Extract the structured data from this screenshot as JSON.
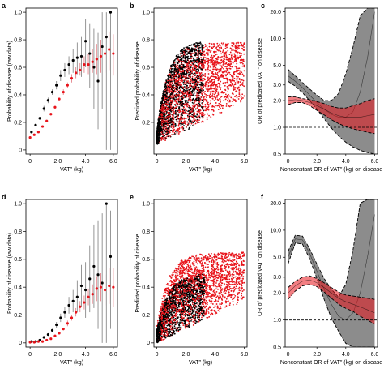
{
  "colors": {
    "black": "#000000",
    "red": "#e8141b",
    "grey_band": "#8c8c8c",
    "red_band": "#e8141b",
    "errbar": "#8a8a8a"
  },
  "chart_data": [
    {
      "id": "a",
      "type": "scatter",
      "letter": "a",
      "xlabel": "VAT″ (kg)",
      "ylabel": "Probability of disease (raw data)",
      "xlim": [
        -0.3,
        6.3
      ],
      "ylim": [
        -0.03,
        1.03
      ],
      "xticks": [
        0,
        2,
        4,
        6
      ],
      "xtick_labels": [
        "0",
        "2.0",
        "4.0",
        "6.0"
      ],
      "yticks": [
        0,
        0.2,
        0.4,
        0.6,
        0.8,
        1.0
      ],
      "ytick_labels": [
        "0",
        "0.2",
        "0.4",
        "0.6",
        "0.8",
        "1.0"
      ],
      "series": [
        {
          "color": "black",
          "x": [
            0.1,
            0.4,
            0.7,
            1.0,
            1.3,
            1.6,
            1.9,
            2.2,
            2.5,
            2.8,
            3.1,
            3.4,
            3.7,
            4.0,
            4.3,
            4.6,
            4.9,
            5.2,
            5.5,
            5.8
          ],
          "y": [
            0.13,
            0.18,
            0.23,
            0.3,
            0.36,
            0.42,
            0.47,
            0.54,
            0.58,
            0.62,
            0.65,
            0.67,
            0.68,
            0.79,
            0.7,
            0.6,
            0.5,
            0.75,
            0.82,
            1.0
          ],
          "lo": [
            0.12,
            0.17,
            0.22,
            0.28,
            0.34,
            0.4,
            0.44,
            0.5,
            0.53,
            0.55,
            0.56,
            0.55,
            0.53,
            0.6,
            0.45,
            0.3,
            0.15,
            0.3,
            0.0,
            0.0
          ],
          "hi": [
            0.14,
            0.19,
            0.24,
            0.32,
            0.38,
            0.44,
            0.5,
            0.58,
            0.63,
            0.68,
            0.73,
            0.78,
            0.82,
            0.95,
            0.92,
            0.88,
            0.85,
            1.0,
            1.0,
            1.0
          ]
        },
        {
          "color": "red",
          "x": [
            0.0,
            0.3,
            0.6,
            0.9,
            1.2,
            1.5,
            1.8,
            2.1,
            2.4,
            2.7,
            3.0,
            3.3,
            3.6,
            3.9,
            4.2,
            4.5,
            4.8,
            5.1,
            5.4,
            5.7,
            6.0
          ],
          "y": [
            0.09,
            0.11,
            0.13,
            0.17,
            0.21,
            0.26,
            0.31,
            0.37,
            0.42,
            0.47,
            0.52,
            0.56,
            0.58,
            0.62,
            0.62,
            0.64,
            0.66,
            0.68,
            0.7,
            0.73,
            0.7
          ],
          "lo": [
            0.085,
            0.105,
            0.125,
            0.165,
            0.205,
            0.25,
            0.3,
            0.36,
            0.4,
            0.45,
            0.49,
            0.52,
            0.54,
            0.56,
            0.55,
            0.56,
            0.55,
            0.56,
            0.56,
            0.58,
            0.54
          ],
          "hi": [
            0.095,
            0.115,
            0.135,
            0.175,
            0.215,
            0.27,
            0.32,
            0.38,
            0.44,
            0.49,
            0.55,
            0.6,
            0.63,
            0.68,
            0.7,
            0.73,
            0.77,
            0.8,
            0.83,
            0.86,
            0.84
          ]
        }
      ]
    },
    {
      "id": "b",
      "type": "scatter",
      "letter": "b",
      "xlabel": "VAT″ (kg)",
      "ylabel": "Predicted probability of disease",
      "xlim": [
        -0.2,
        6.2
      ],
      "ylim": [
        -0.03,
        1.03
      ],
      "xticks": [
        0,
        2,
        4,
        6
      ],
      "xtick_labels": [
        "0",
        "2.0",
        "4.0",
        "6.0"
      ],
      "yticks": [
        0.2,
        0.4,
        0.6,
        0.8,
        1.0
      ],
      "ytick_labels": [
        "0.2",
        "0.4",
        "0.6",
        "0.8",
        "1.0"
      ],
      "cloud": {
        "black_x_max": 3.2,
        "black_top_max": 0.8,
        "red_x_max": 6.0,
        "red_top_max": 0.78,
        "low_min": 0.04
      }
    },
    {
      "id": "c",
      "type": "line",
      "letter": "c",
      "xlabel": "Nonconstant OR of VAT″ (kg) on disease",
      "ylabel": "OR of predicated VAT″ on disease",
      "xlim": [
        -0.2,
        6.2
      ],
      "ylim_log": [
        0.5,
        22
      ],
      "log_y": true,
      "xticks": [
        0,
        2,
        4,
        6
      ],
      "xtick_labels": [
        "0",
        "2.0",
        "4.0",
        "6.0"
      ],
      "yticks": [
        0.5,
        1.0,
        2.0,
        3.0,
        5.0,
        10.0,
        20.0
      ],
      "ytick_labels": [
        "0.5",
        "1.0",
        "2.0",
        "3.0",
        "5.0",
        "10.0",
        "20.0"
      ],
      "reference_line": 1.0,
      "grey": {
        "x": [
          0,
          0.5,
          1.0,
          1.5,
          2.0,
          2.5,
          3.0,
          3.5,
          4.0,
          4.5,
          5.0,
          5.5,
          6.0
        ],
        "mid": [
          3.8,
          3.3,
          2.8,
          2.3,
          1.9,
          1.6,
          1.4,
          1.3,
          1.3,
          1.5,
          2.5,
          6.0,
          20
        ],
        "lo": [
          3.3,
          2.9,
          2.45,
          2.0,
          1.6,
          1.25,
          0.98,
          0.8,
          0.68,
          0.6,
          0.55,
          0.52,
          0.5
        ],
        "hi": [
          4.5,
          3.8,
          3.2,
          2.7,
          2.3,
          2.0,
          2.0,
          2.4,
          4.0,
          8.0,
          18,
          22,
          22
        ]
      },
      "red": {
        "x": [
          0,
          0.5,
          1.0,
          1.5,
          2.0,
          2.5,
          3.0,
          3.5,
          4.0,
          4.5,
          5.0,
          5.5,
          6.0
        ],
        "mid": [
          2.0,
          2.05,
          2.0,
          1.9,
          1.75,
          1.6,
          1.45,
          1.35,
          1.3,
          1.3,
          1.3,
          1.35,
          1.4
        ],
        "lo": [
          1.8,
          1.9,
          1.9,
          1.75,
          1.55,
          1.38,
          1.22,
          1.1,
          1.02,
          0.96,
          0.92,
          0.88,
          0.85
        ],
        "hi": [
          2.2,
          2.2,
          2.1,
          2.05,
          1.95,
          1.85,
          1.72,
          1.65,
          1.65,
          1.75,
          1.85,
          2.0,
          2.1
        ]
      }
    },
    {
      "id": "d",
      "type": "scatter",
      "letter": "d",
      "xlabel": "VAT″ (kg)",
      "ylabel": "Probability of disease (raw data)",
      "xlim": [
        -0.3,
        6.3
      ],
      "ylim": [
        -0.03,
        1.03
      ],
      "xticks": [
        0,
        2,
        4,
        6
      ],
      "xtick_labels": [
        "0",
        "2.0",
        "4.0",
        "6.0"
      ],
      "yticks": [
        0,
        0.2,
        0.4,
        0.6,
        0.8,
        1.0
      ],
      "ytick_labels": [
        "0",
        "0.2",
        "0.4",
        "0.6",
        "0.8",
        "1.0"
      ],
      "series": [
        {
          "color": "black",
          "x": [
            0.1,
            0.4,
            0.7,
            1.0,
            1.3,
            1.6,
            1.9,
            2.2,
            2.5,
            2.8,
            3.1,
            3.4,
            3.7,
            4.0,
            4.3,
            4.6,
            4.9,
            5.2,
            5.5,
            5.8
          ],
          "y": [
            0.01,
            0.01,
            0.02,
            0.04,
            0.06,
            0.09,
            0.13,
            0.18,
            0.22,
            0.27,
            0.3,
            0.33,
            0.41,
            0.38,
            0.46,
            0.55,
            0.49,
            0.43,
            1.0,
            0.62
          ],
          "lo": [
            0.005,
            0.005,
            0.015,
            0.035,
            0.05,
            0.08,
            0.11,
            0.15,
            0.18,
            0.21,
            0.22,
            0.22,
            0.26,
            0.18,
            0.22,
            0.25,
            0.1,
            0.0,
            0.0,
            0.1
          ],
          "hi": [
            0.015,
            0.015,
            0.025,
            0.045,
            0.07,
            0.1,
            0.15,
            0.21,
            0.26,
            0.33,
            0.38,
            0.45,
            0.56,
            0.58,
            0.7,
            0.85,
            0.88,
            0.93,
            1.0,
            0.95
          ]
        },
        {
          "color": "red",
          "x": [
            0.0,
            0.3,
            0.6,
            0.9,
            1.2,
            1.5,
            1.8,
            2.1,
            2.4,
            2.7,
            3.0,
            3.3,
            3.6,
            3.9,
            4.2,
            4.5,
            4.8,
            5.1,
            5.4,
            5.7,
            6.0
          ],
          "y": [
            0.005,
            0.005,
            0.01,
            0.01,
            0.02,
            0.03,
            0.05,
            0.07,
            0.1,
            0.14,
            0.18,
            0.22,
            0.26,
            0.29,
            0.33,
            0.35,
            0.39,
            0.4,
            0.38,
            0.41,
            0.4
          ],
          "lo": [
            0.003,
            0.003,
            0.008,
            0.008,
            0.015,
            0.025,
            0.04,
            0.06,
            0.09,
            0.12,
            0.16,
            0.19,
            0.22,
            0.24,
            0.27,
            0.28,
            0.3,
            0.3,
            0.27,
            0.28,
            0.26
          ],
          "hi": [
            0.007,
            0.007,
            0.012,
            0.012,
            0.025,
            0.035,
            0.06,
            0.08,
            0.11,
            0.16,
            0.2,
            0.25,
            0.3,
            0.34,
            0.39,
            0.42,
            0.48,
            0.5,
            0.49,
            0.54,
            0.54
          ]
        }
      ]
    },
    {
      "id": "e",
      "type": "scatter",
      "letter": "e",
      "xlabel": "VAT″ (kg)",
      "ylabel": "Predicted probability of disease",
      "xlim": [
        -0.2,
        6.2
      ],
      "ylim": [
        -0.03,
        1.03
      ],
      "xticks": [
        0,
        2,
        4,
        6
      ],
      "xtick_labels": [
        "0",
        "2.0",
        "4.0",
        "6.0"
      ],
      "yticks": [
        0,
        0.2,
        0.4,
        0.6,
        0.8,
        1.0
      ],
      "ytick_labels": [
        "0",
        "0.2",
        "0.4",
        "0.6",
        "0.8",
        "1.0"
      ],
      "cloud": {
        "black_x_max": 3.3,
        "black_top_max": 0.5,
        "red_x_max": 6.0,
        "red_top_max": 0.65,
        "low_min": 0.0
      }
    },
    {
      "id": "f",
      "type": "line",
      "letter": "f",
      "xlabel": "Nonconstant OR of VAT″ (kg) on disease",
      "ylabel": "OR of predicated VAT″ on disease",
      "xlim": [
        -0.2,
        6.2
      ],
      "ylim_log": [
        0.5,
        22
      ],
      "log_y": true,
      "xticks": [
        0,
        2,
        4,
        6
      ],
      "xtick_labels": [
        "0",
        "2.0",
        "4.0",
        "6.0"
      ],
      "yticks": [
        0.5,
        1.0,
        2.0,
        3.0,
        5.0,
        10.0,
        20.0
      ],
      "ytick_labels": [
        "0.5",
        "1.0",
        "2.0",
        "3.0",
        "5.0",
        "10.0",
        "20.0"
      ],
      "reference_line": 1.0,
      "grey": {
        "x": [
          0,
          0.5,
          1.0,
          1.5,
          2.0,
          2.5,
          3.0,
          3.5,
          4.0,
          4.5,
          5.0,
          5.5,
          6.0
        ],
        "mid": [
          5.0,
          8.0,
          7.8,
          5.5,
          3.5,
          2.2,
          1.5,
          1.1,
          1.0,
          1.2,
          2.0,
          5.0,
          15
        ],
        "lo": [
          4.2,
          7.2,
          7.0,
          4.8,
          2.9,
          1.7,
          1.05,
          0.75,
          0.55,
          0.5,
          0.5,
          0.5,
          0.5
        ],
        "hi": [
          5.8,
          8.8,
          8.6,
          6.2,
          4.2,
          2.9,
          2.2,
          1.8,
          2.5,
          6.0,
          20,
          22,
          22
        ]
      },
      "red": {
        "x": [
          0,
          0.5,
          1.0,
          1.5,
          2.0,
          2.5,
          3.0,
          3.5,
          4.0,
          4.5,
          5.0,
          5.5,
          6.0
        ],
        "mid": [
          2.0,
          2.4,
          2.7,
          2.8,
          2.6,
          2.3,
          2.0,
          1.75,
          1.6,
          1.5,
          1.4,
          1.3,
          1.2
        ],
        "lo": [
          1.7,
          2.1,
          2.4,
          2.5,
          2.35,
          2.05,
          1.75,
          1.5,
          1.35,
          1.25,
          1.1,
          1.0,
          0.9
        ],
        "hi": [
          2.3,
          2.7,
          3.0,
          3.1,
          2.9,
          2.6,
          2.3,
          2.05,
          1.9,
          1.85,
          1.8,
          1.75,
          1.7
        ]
      }
    }
  ]
}
